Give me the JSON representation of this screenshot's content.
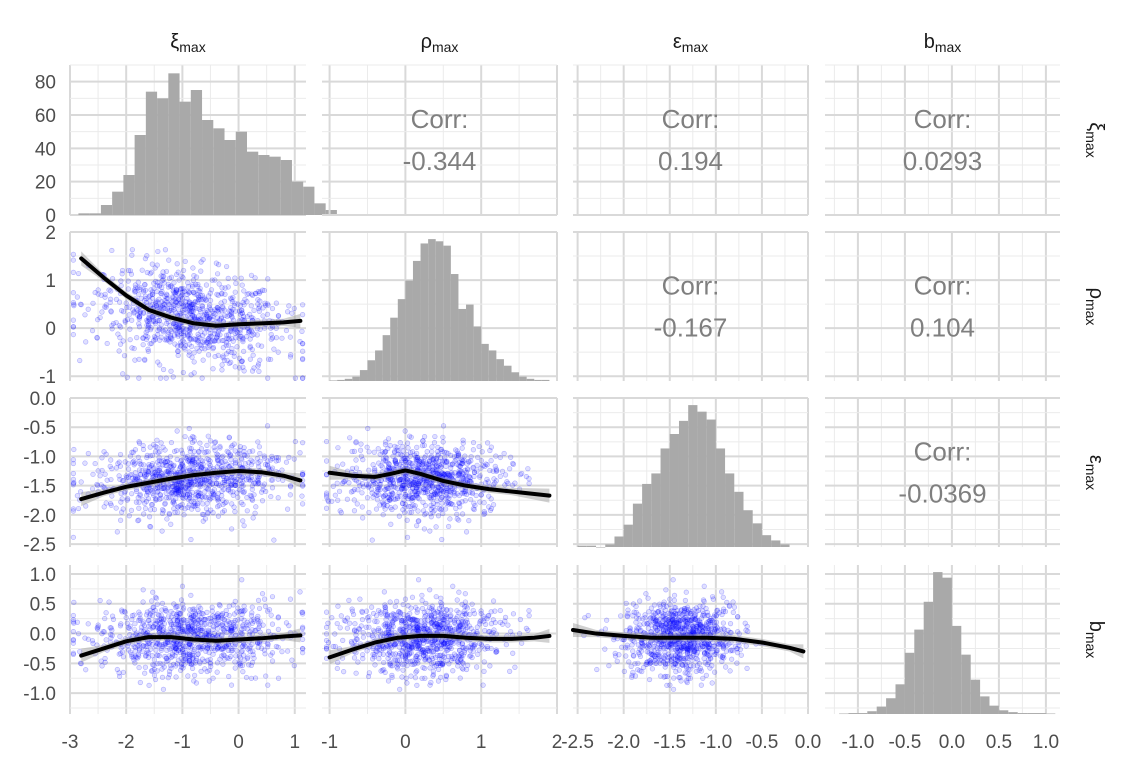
{
  "chart_data": {
    "type": "scatter-matrix",
    "variables": [
      {
        "id": "xi",
        "base": "ξ",
        "sub": "max",
        "range": [
          -3,
          1.2
        ],
        "ticks": [
          -3,
          -2,
          -1,
          0,
          1
        ],
        "tick_labels": [
          "-3",
          "-2",
          "-1",
          "0",
          "1"
        ]
      },
      {
        "id": "rho",
        "base": "ρ",
        "sub": "max",
        "range": [
          -1.1,
          2
        ],
        "ticks": [
          -1,
          0,
          1,
          2
        ],
        "tick_labels": [
          "-1",
          "0",
          "1",
          "2"
        ]
      },
      {
        "id": "eps",
        "base": "ε",
        "sub": "max",
        "range": [
          -2.55,
          0
        ],
        "ticks": [
          -2.5,
          -2.0,
          -1.5,
          -1.0,
          -0.5,
          0.0
        ],
        "tick_labels": [
          "-2.5",
          "-2.0",
          "-1.5",
          "-1.0",
          "-0.5",
          "0.0"
        ]
      },
      {
        "id": "b",
        "base": "b",
        "sub": "max",
        "range": [
          -1.35,
          1.15
        ],
        "ticks": [
          -1.0,
          -0.5,
          0.0,
          0.5,
          1.0
        ],
        "tick_labels": [
          "-1.0",
          "-0.5",
          "0.0",
          "0.5",
          "1.0"
        ]
      }
    ],
    "row_y_axes": [
      {
        "range": [
          0,
          90
        ],
        "ticks": [
          0,
          20,
          40,
          60,
          80
        ],
        "tick_labels": [
          "0",
          "20",
          "40",
          "60",
          "80"
        ]
      },
      {
        "range": [
          -1.1,
          2
        ],
        "ticks": [
          -1,
          0,
          1,
          2
        ],
        "tick_labels": [
          "-1",
          "0",
          "1",
          "2"
        ]
      },
      {
        "range": [
          -2.55,
          0
        ],
        "ticks": [
          -2.5,
          -2.0,
          -1.5,
          -1.0,
          -0.5,
          0.0
        ],
        "tick_labels": [
          "-2.5",
          "-2.0",
          "-1.5",
          "-1.0",
          "-0.5",
          "0.0"
        ]
      },
      {
        "range": [
          -1.35,
          1.15
        ],
        "ticks": [
          -1.0,
          -0.5,
          0.0,
          0.5,
          1.0
        ],
        "tick_labels": [
          "-1.0",
          "-0.5",
          "0.0",
          "0.5",
          "1.0"
        ]
      }
    ],
    "correlations": [
      {
        "row": 0,
        "col": 1,
        "label": "Corr:",
        "value": "-0.344"
      },
      {
        "row": 0,
        "col": 2,
        "label": "Corr:",
        "value": "0.194"
      },
      {
        "row": 0,
        "col": 3,
        "label": "Corr:",
        "value": "0.0293"
      },
      {
        "row": 1,
        "col": 2,
        "label": "Corr:",
        "value": "-0.167"
      },
      {
        "row": 1,
        "col": 3,
        "label": "Corr:",
        "value": "0.104"
      },
      {
        "row": 2,
        "col": 3,
        "label": "Corr:",
        "value": "-0.0369"
      }
    ],
    "histograms": [
      {
        "var": "xi",
        "start": -2.85,
        "width": 0.2,
        "counts": [
          1,
          1,
          6,
          14,
          24,
          48,
          74,
          70,
          85,
          68,
          75,
          57,
          52,
          45,
          50,
          38,
          36,
          35,
          33,
          20,
          17,
          7,
          3
        ]
      },
      {
        "var": "rho",
        "start": -1.0,
        "width": 0.1,
        "counts": [
          0.5,
          1,
          2,
          4,
          10,
          19,
          28,
          42,
          58,
          75,
          92,
          110,
          126,
          130,
          128,
          124,
          98,
          66,
          70,
          50,
          34,
          28,
          20,
          14,
          8,
          4,
          2,
          1,
          1
        ]
      },
      {
        "var": "eps",
        "start": -2.5,
        "width": 0.1,
        "counts": [
          1,
          1,
          0,
          2,
          8,
          17,
          33,
          48,
          56,
          75,
          86,
          96,
          108,
          103,
          97,
          75,
          56,
          42,
          28,
          18,
          9,
          5,
          2
        ]
      },
      {
        "var": "b",
        "start": -1.2,
        "width": 0.1,
        "counts": [
          0.5,
          1,
          1,
          3,
          8,
          17,
          32,
          66,
          91,
          121,
          153,
          147,
          95,
          64,
          37,
          19,
          9,
          4,
          2,
          1,
          1,
          1,
          0.5
        ]
      }
    ],
    "smooths": [
      {
        "row": 1,
        "col": 0,
        "x": [
          -2.8,
          -2.4,
          -2.0,
          -1.6,
          -1.2,
          -0.8,
          -0.4,
          0.0,
          0.4,
          0.8,
          1.1
        ],
        "y": [
          1.45,
          1.05,
          0.68,
          0.38,
          0.22,
          0.1,
          0.05,
          0.08,
          0.1,
          0.12,
          0.15
        ]
      },
      {
        "row": 2,
        "col": 0,
        "x": [
          -2.8,
          -2.4,
          -2.0,
          -1.6,
          -1.2,
          -0.8,
          -0.4,
          0.0,
          0.4,
          0.8,
          1.1
        ],
        "y": [
          -1.73,
          -1.62,
          -1.52,
          -1.45,
          -1.38,
          -1.32,
          -1.28,
          -1.25,
          -1.27,
          -1.33,
          -1.41
        ]
      },
      {
        "row": 2,
        "col": 1,
        "x": [
          -1.0,
          -0.7,
          -0.4,
          -0.2,
          0.0,
          0.2,
          0.5,
          0.8,
          1.1,
          1.4,
          1.9
        ],
        "y": [
          -1.28,
          -1.33,
          -1.35,
          -1.3,
          -1.24,
          -1.3,
          -1.42,
          -1.5,
          -1.56,
          -1.6,
          -1.67
        ]
      },
      {
        "row": 3,
        "col": 0,
        "x": [
          -2.8,
          -2.4,
          -2.0,
          -1.6,
          -1.2,
          -0.8,
          -0.4,
          0.0,
          0.4,
          0.8,
          1.1
        ],
        "y": [
          -0.37,
          -0.25,
          -0.13,
          -0.06,
          -0.06,
          -0.1,
          -0.12,
          -0.1,
          -0.08,
          -0.05,
          -0.03
        ]
      },
      {
        "row": 3,
        "col": 1,
        "x": [
          -1.0,
          -0.7,
          -0.4,
          -0.1,
          0.2,
          0.5,
          0.8,
          1.1,
          1.4,
          1.7,
          1.9
        ],
        "y": [
          -0.4,
          -0.27,
          -0.15,
          -0.07,
          -0.04,
          -0.04,
          -0.07,
          -0.09,
          -0.09,
          -0.07,
          -0.04
        ]
      },
      {
        "row": 3,
        "col": 2,
        "x": [
          -2.55,
          -2.3,
          -2.0,
          -1.7,
          -1.4,
          -1.1,
          -0.8,
          -0.5,
          -0.2,
          -0.05
        ],
        "y": [
          0.06,
          0.0,
          -0.04,
          -0.07,
          -0.07,
          -0.07,
          -0.09,
          -0.15,
          -0.24,
          -0.3
        ]
      }
    ]
  }
}
